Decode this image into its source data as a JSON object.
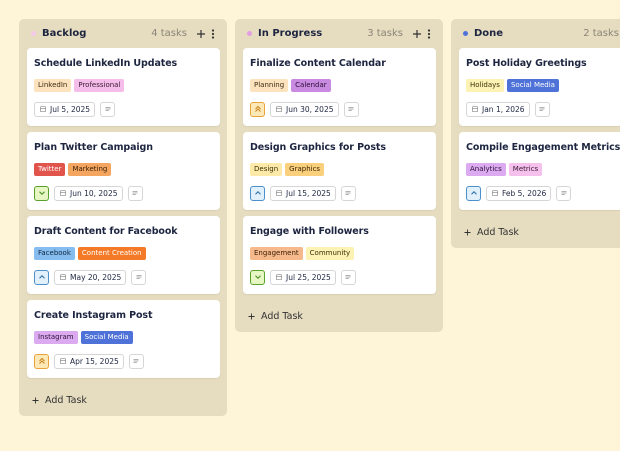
{
  "columns": [
    {
      "title": "Backlog",
      "count": "4 tasks",
      "dot_color": "#f5c9e8",
      "add_label": "Add Task",
      "cards": [
        {
          "title": "Schedule LinkedIn Updates",
          "tags": [
            {
              "label": "LinkedIn",
              "color": "#fde3bd",
              "text_color": "#3a2a12"
            },
            {
              "label": "Professional",
              "color": "#f5bde9",
              "text_color": "#3a1a33"
            }
          ],
          "priority": "none",
          "date": "Jul 5, 2025"
        },
        {
          "title": "Plan Twitter Campaign",
          "tags": [
            {
              "label": "Twitter",
              "color": "#e0544c",
              "text_color": "#ffffff"
            },
            {
              "label": "Marketing",
              "color": "#f4a660",
              "text_color": "#3a2008"
            }
          ],
          "priority": "low",
          "date": "Jun 10, 2025"
        },
        {
          "title": "Draft Content for Facebook",
          "tags": [
            {
              "label": "Facebook",
              "color": "#86bdf0",
              "text_color": "#10243a"
            },
            {
              "label": "Content Creation",
              "color": "#f47a27",
              "text_color": "#ffffff"
            }
          ],
          "priority": "medium",
          "date": "May 20, 2025"
        },
        {
          "title": "Create Instagram Post",
          "tags": [
            {
              "label": "Instagram",
              "color": "#dcaaf0",
              "text_color": "#2e1238"
            },
            {
              "label": "Social Media",
              "color": "#4f72d8",
              "text_color": "#ffffff"
            }
          ],
          "priority": "high",
          "date": "Apr 15, 2025"
        }
      ]
    },
    {
      "title": "In Progress",
      "count": "3 tasks",
      "dot_color": "#e39de2",
      "add_label": "Add Task",
      "cards": [
        {
          "title": "Finalize Content Calendar",
          "tags": [
            {
              "label": "Planning",
              "color": "#fde3bd",
              "text_color": "#3a2a12"
            },
            {
              "label": "Calendar",
              "color": "#c98be2",
              "text_color": "#2a0f33"
            }
          ],
          "priority": "high",
          "date": "Jun 30, 2025"
        },
        {
          "title": "Design Graphics for Posts",
          "tags": [
            {
              "label": "Design",
              "color": "#fdeaa8",
              "text_color": "#3a2e08"
            },
            {
              "label": "Graphics",
              "color": "#fbd07c",
              "text_color": "#3a2608"
            }
          ],
          "priority": "medium",
          "date": "Jul 15, 2025"
        },
        {
          "title": "Engage with Followers",
          "tags": [
            {
              "label": "Engagement",
              "color": "#f6b98b",
              "text_color": "#3a1e08"
            },
            {
              "label": "Community",
              "color": "#fbf2b4",
              "text_color": "#3a3208"
            }
          ],
          "priority": "low",
          "date": "Jul 25, 2025"
        }
      ]
    },
    {
      "title": "Done",
      "count": "2 tasks",
      "dot_color": "#4f72d8",
      "add_label": "Add Task",
      "cards": [
        {
          "title": "Post Holiday Greetings",
          "tags": [
            {
              "label": "Holidays",
              "color": "#fbf2b4",
              "text_color": "#3a3208"
            },
            {
              "label": "Social Media",
              "color": "#4f72d8",
              "text_color": "#ffffff"
            }
          ],
          "priority": "none",
          "date": "Jan 1, 2026"
        },
        {
          "title": "Compile Engagement Metrics",
          "tags": [
            {
              "label": "Analytics",
              "color": "#dcaaf0",
              "text_color": "#2e1238"
            },
            {
              "label": "Metrics",
              "color": "#f5c0ec",
              "text_color": "#3a1a33"
            }
          ],
          "priority": "medium",
          "date": "Feb 5, 2026"
        }
      ]
    }
  ]
}
